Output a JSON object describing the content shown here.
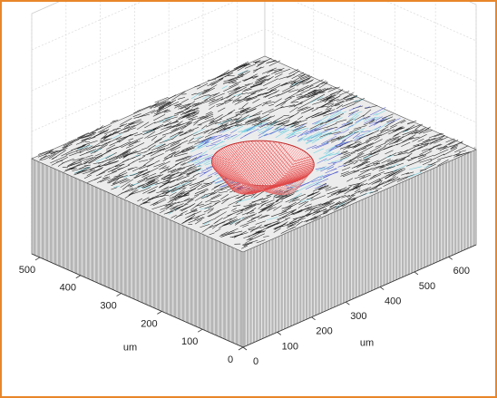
{
  "chart_data": {
    "type": "surface3d",
    "xlabel": "um",
    "ylabel": "um",
    "xlim": [
      0,
      680
    ],
    "ylim": [
      0,
      520
    ],
    "xticks": [
      0,
      100,
      200,
      300,
      400,
      500,
      600
    ],
    "yticks": [
      0,
      100,
      200,
      300,
      400,
      500
    ],
    "grid": true
  }
}
